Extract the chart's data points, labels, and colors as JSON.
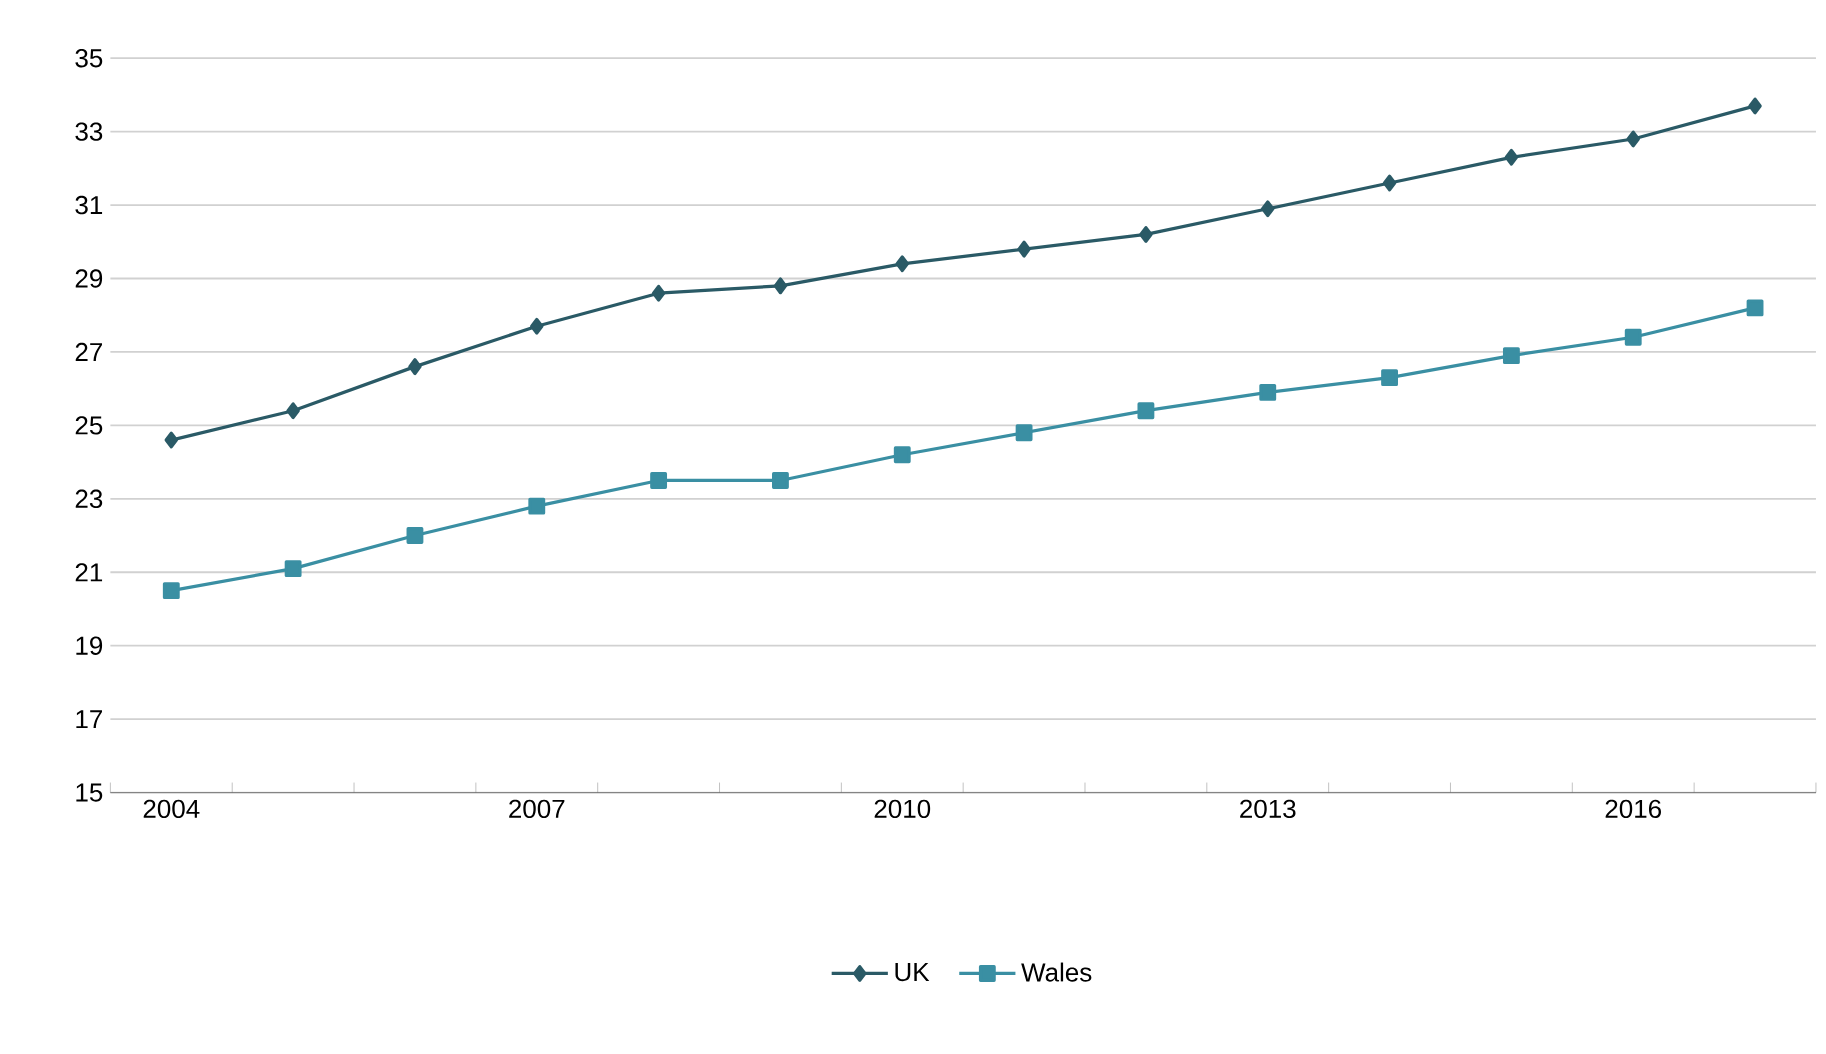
{
  "chart_data": {
    "type": "line",
    "categories": [
      "2004",
      null,
      null,
      "2007",
      null,
      null,
      "2010",
      null,
      null,
      "2013",
      null,
      null,
      "2016",
      null
    ],
    "series": [
      {
        "name": "UK",
        "color": "#2a5a66",
        "marker": "diamond",
        "values": [
          24.6,
          25.4,
          26.6,
          27.7,
          28.6,
          28.8,
          29.4,
          29.8,
          30.2,
          30.9,
          31.6,
          32.3,
          32.8,
          33.7
        ]
      },
      {
        "name": "Wales",
        "color": "#3a8fa3",
        "marker": "square",
        "values": [
          20.5,
          21.1,
          22.0,
          22.8,
          23.5,
          23.5,
          24.2,
          24.8,
          25.4,
          25.9,
          26.3,
          26.9,
          27.4,
          28.2
        ]
      }
    ],
    "ylim": [
      15,
      35
    ],
    "yticks": [
      15,
      17,
      19,
      21,
      23,
      25,
      27,
      29,
      31,
      33,
      35
    ],
    "grid": "y",
    "legend": "bottom",
    "line_style": "solid"
  }
}
